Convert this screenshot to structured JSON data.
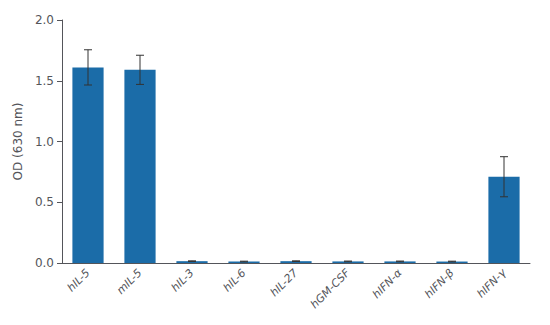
{
  "chart_data": {
    "type": "bar",
    "categories": [
      "hIL-5",
      "mIL-5",
      "hIL-3",
      "hIL-6",
      "hIL-27",
      "hGM-CSF",
      "hIFN-α",
      "hIFN-β",
      "hIFN-γ"
    ],
    "values": [
      1.61,
      1.59,
      0.015,
      0.012,
      0.015,
      0.013,
      0.013,
      0.012,
      0.71
    ],
    "errors": [
      0.145,
      0.12,
      0.003,
      0.003,
      0.003,
      0.003,
      0.003,
      0.003,
      0.165
    ],
    "color": "#1b6ca8",
    "ylabel": "OD (630 nm)",
    "ylim": [
      0,
      2.0
    ],
    "yticks": [
      {
        "value": 0.0,
        "label": "0.0"
      },
      0.5,
      {
        "value": 1.0,
        "label": "1.0"
      },
      1.5,
      {
        "value": 2.0,
        "label": "2.0"
      }
    ],
    "grid": false
  }
}
